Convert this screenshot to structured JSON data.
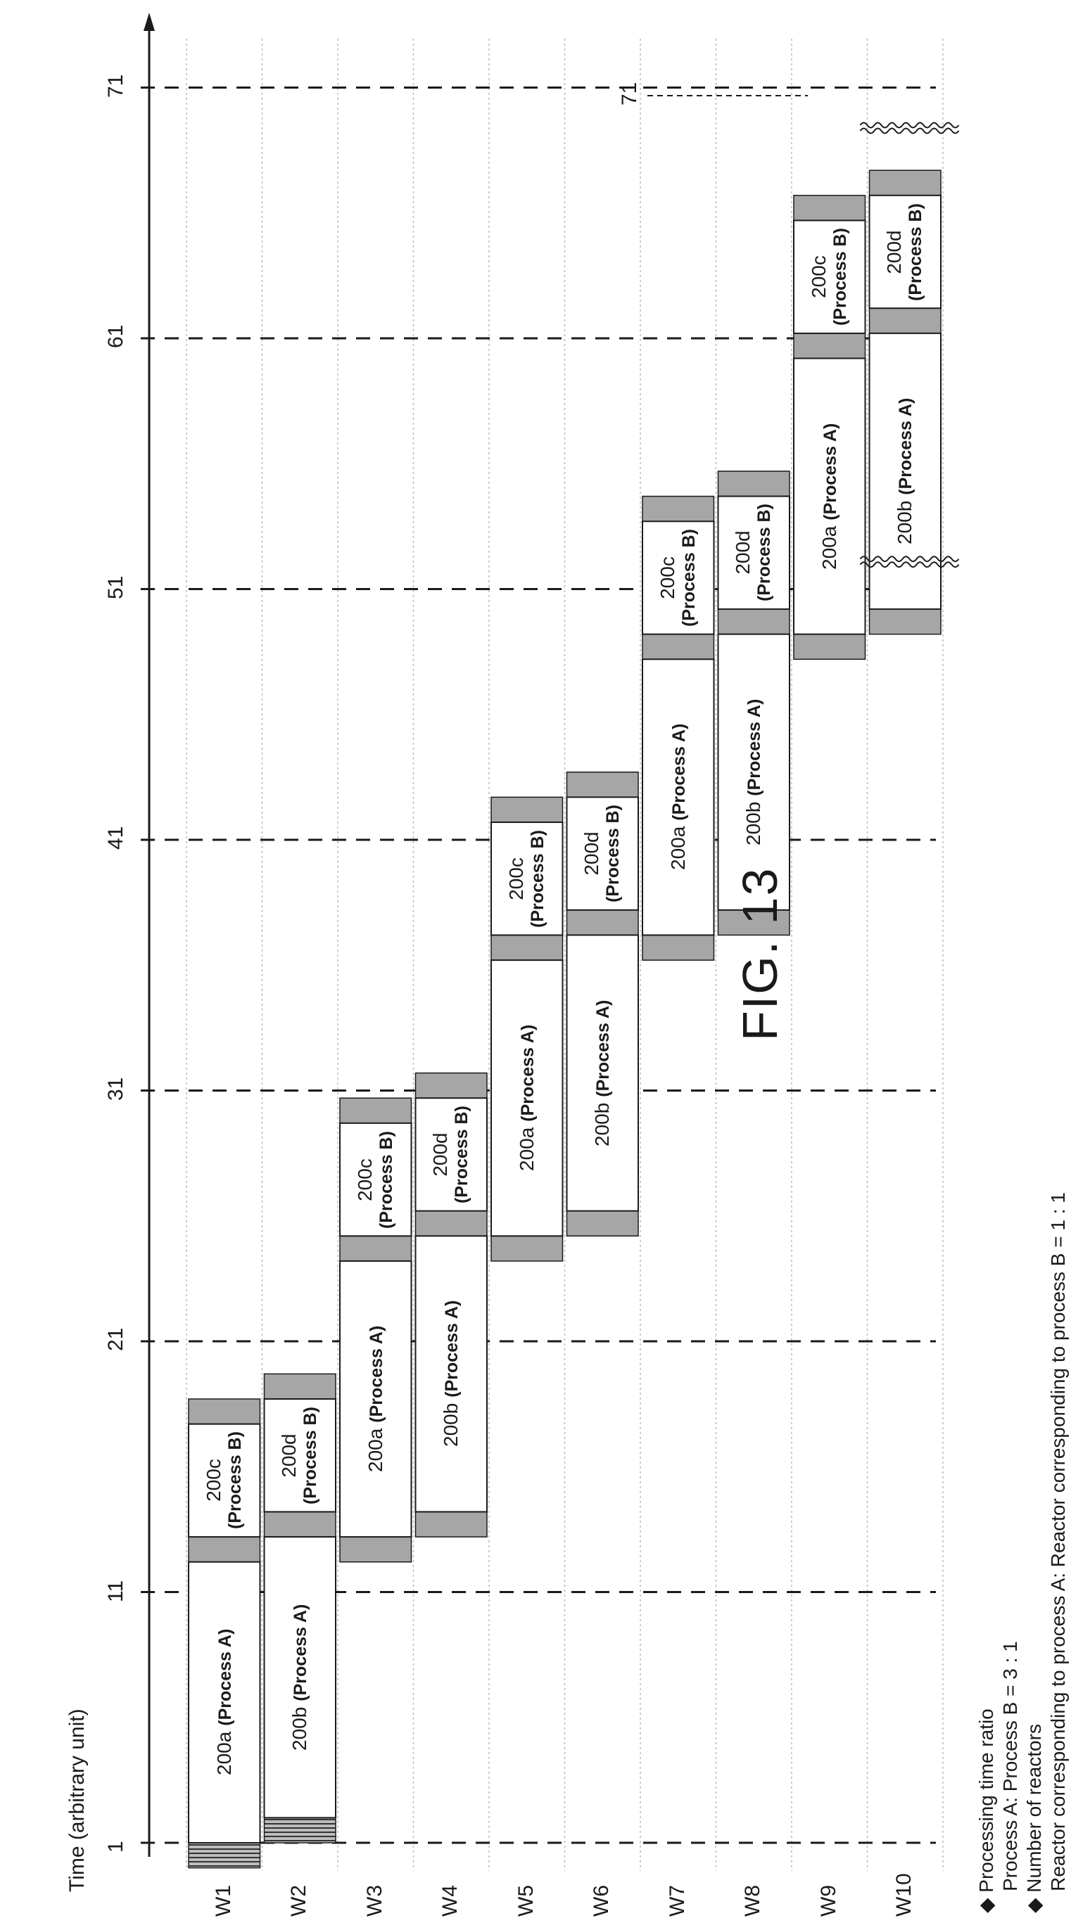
{
  "figure_title": "FIG. 13",
  "axis_title": "Time (arbitrary unit)",
  "time_ticks": [
    1,
    11,
    21,
    31,
    41,
    51,
    61,
    71
  ],
  "ref_71_label": "71",
  "wafers": [
    "W1",
    "W2",
    "W3",
    "W4",
    "W5",
    "W6",
    "W7",
    "W8",
    "W9",
    "W10"
  ],
  "blocks": [
    {
      "w": 0,
      "start": 1,
      "end": 12.2,
      "id": "200a",
      "proc": "(Process A)",
      "lines": 1
    },
    {
      "w": 0,
      "start": 13.2,
      "end": 17.7,
      "id": "200c",
      "proc": "(Process B)",
      "lines": 2
    },
    {
      "w": 1,
      "start": 2,
      "end": 13.2,
      "id": "200b",
      "proc": "(Process A)",
      "lines": 1
    },
    {
      "w": 1,
      "start": 14.2,
      "end": 18.7,
      "id": "200d",
      "proc": "(Process B)",
      "lines": 2
    },
    {
      "w": 2,
      "start": 13.2,
      "end": 24.2,
      "id": "200a",
      "proc": "(Process A)",
      "lines": 1
    },
    {
      "w": 2,
      "start": 25.2,
      "end": 29.7,
      "id": "200c",
      "proc": "(Process B)",
      "lines": 2
    },
    {
      "w": 3,
      "start": 14.2,
      "end": 25.2,
      "id": "200b",
      "proc": "(Process A)",
      "lines": 1
    },
    {
      "w": 3,
      "start": 26.2,
      "end": 30.7,
      "id": "200d",
      "proc": "(Process B)",
      "lines": 2
    },
    {
      "w": 4,
      "start": 25.2,
      "end": 36.2,
      "id": "200a",
      "proc": "(Process A)",
      "lines": 1
    },
    {
      "w": 4,
      "start": 37.2,
      "end": 41.7,
      "id": "200c",
      "proc": "(Process B)",
      "lines": 2
    },
    {
      "w": 5,
      "start": 26.2,
      "end": 37.2,
      "id": "200b",
      "proc": "(Process A)",
      "lines": 1
    },
    {
      "w": 5,
      "start": 38.2,
      "end": 42.7,
      "id": "200d",
      "proc": "(Process B)",
      "lines": 2
    },
    {
      "w": 6,
      "start": 37.2,
      "end": 48.2,
      "id": "200a",
      "proc": "(Process A)",
      "lines": 1
    },
    {
      "w": 6,
      "start": 49.2,
      "end": 53.7,
      "id": "200c",
      "proc": "(Process B)",
      "lines": 2
    },
    {
      "w": 7,
      "start": 38.2,
      "end": 49.2,
      "id": "200b",
      "proc": "(Process A)",
      "lines": 1
    },
    {
      "w": 7,
      "start": 50.2,
      "end": 54.7,
      "id": "200d",
      "proc": "(Process B)",
      "lines": 2
    },
    {
      "w": 8,
      "start": 49.2,
      "end": 60.2,
      "id": "200a",
      "proc": "(Process A)",
      "lines": 1
    },
    {
      "w": 8,
      "start": 61.2,
      "end": 65.7,
      "id": "200c",
      "proc": "(Process B)",
      "lines": 2
    },
    {
      "w": 9,
      "start": 50.2,
      "end": 61.2,
      "id": "200b",
      "proc": "(Process A)",
      "lines": 1
    },
    {
      "w": 9,
      "start": 62.2,
      "end": 66.7,
      "id": "200d",
      "proc": "(Process B)",
      "lines": 2
    }
  ],
  "loads": [
    {
      "w": 0,
      "start": 0,
      "end": 1,
      "style": "hatch"
    },
    {
      "w": 0,
      "start": 12.2,
      "end": 13.2,
      "style": "gray"
    },
    {
      "w": 0,
      "start": 17.7,
      "end": 18.7,
      "style": "gray"
    },
    {
      "w": 1,
      "start": 1,
      "end": 2,
      "style": "hatch"
    },
    {
      "w": 1,
      "start": 13.2,
      "end": 14.2,
      "style": "gray"
    },
    {
      "w": 1,
      "start": 18.7,
      "end": 19.7,
      "style": "gray"
    },
    {
      "w": 2,
      "start": 12.2,
      "end": 13.2,
      "style": "gray"
    },
    {
      "w": 2,
      "start": 24.2,
      "end": 25.2,
      "style": "gray"
    },
    {
      "w": 2,
      "start": 29.7,
      "end": 30.7,
      "style": "gray"
    },
    {
      "w": 3,
      "start": 13.2,
      "end": 14.2,
      "style": "gray"
    },
    {
      "w": 3,
      "start": 25.2,
      "end": 26.2,
      "style": "gray"
    },
    {
      "w": 3,
      "start": 30.7,
      "end": 31.7,
      "style": "gray"
    },
    {
      "w": 4,
      "start": 24.2,
      "end": 25.2,
      "style": "gray"
    },
    {
      "w": 4,
      "start": 36.2,
      "end": 37.2,
      "style": "gray"
    },
    {
      "w": 4,
      "start": 41.7,
      "end": 42.7,
      "style": "gray"
    },
    {
      "w": 5,
      "start": 25.2,
      "end": 26.2,
      "style": "gray"
    },
    {
      "w": 5,
      "start": 37.2,
      "end": 38.2,
      "style": "gray"
    },
    {
      "w": 5,
      "start": 42.7,
      "end": 43.7,
      "style": "gray"
    },
    {
      "w": 6,
      "start": 36.2,
      "end": 37.2,
      "style": "gray"
    },
    {
      "w": 6,
      "start": 48.2,
      "end": 49.2,
      "style": "gray"
    },
    {
      "w": 6,
      "start": 53.7,
      "end": 54.7,
      "style": "gray"
    },
    {
      "w": 7,
      "start": 37.2,
      "end": 38.2,
      "style": "gray"
    },
    {
      "w": 7,
      "start": 49.2,
      "end": 50.2,
      "style": "gray"
    },
    {
      "w": 7,
      "start": 54.7,
      "end": 55.7,
      "style": "gray"
    },
    {
      "w": 8,
      "start": 48.2,
      "end": 49.2,
      "style": "gray"
    },
    {
      "w": 8,
      "start": 60.2,
      "end": 61.2,
      "style": "gray"
    },
    {
      "w": 8,
      "start": 65.7,
      "end": 66.7,
      "style": "gray"
    },
    {
      "w": 9,
      "start": 49.2,
      "end": 50.2,
      "style": "gray"
    },
    {
      "w": 9,
      "start": 61.2,
      "end": 62.2,
      "style": "gray"
    },
    {
      "w": 9,
      "start": 66.7,
      "end": 67.7,
      "style": "gray"
    }
  ],
  "notes": {
    "b1": "Processing time ratio",
    "l1": "Process A: Process B = 3 : 1",
    "b2": "Number of reactors",
    "l2": "Reactor corresponding to process A: Reactor corresponding to process B = 1 : 1"
  },
  "colors": {
    "line": "#1a1a1a",
    "load_fill": "#a6a6a6",
    "grid": "#b8b8b8",
    "block_fill": "#ffffff"
  }
}
